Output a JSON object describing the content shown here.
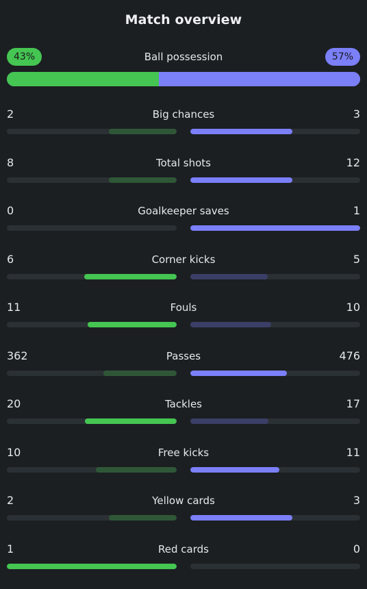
{
  "title": "Match overview",
  "colors": {
    "home_strong": "#45c552",
    "home_weak": "#2f5737",
    "away_strong": "#7b7ff8",
    "away_weak": "#3b3f67",
    "track": "#2b3034",
    "background": "#1b1f22"
  },
  "possession": {
    "label": "Ball possession",
    "home_label": "43%",
    "away_label": "57%",
    "home": 43,
    "away": 57
  },
  "stats": [
    {
      "label": "Big chances",
      "home": "2",
      "away": "3"
    },
    {
      "label": "Total shots",
      "home": "8",
      "away": "12"
    },
    {
      "label": "Goalkeeper saves",
      "home": "0",
      "away": "1"
    },
    {
      "label": "Corner kicks",
      "home": "6",
      "away": "5"
    },
    {
      "label": "Fouls",
      "home": "11",
      "away": "10"
    },
    {
      "label": "Passes",
      "home": "362",
      "away": "476"
    },
    {
      "label": "Tackles",
      "home": "20",
      "away": "17"
    },
    {
      "label": "Free kicks",
      "home": "10",
      "away": "11"
    },
    {
      "label": "Yellow cards",
      "home": "2",
      "away": "3"
    },
    {
      "label": "Red cards",
      "home": "1",
      "away": "0"
    }
  ]
}
